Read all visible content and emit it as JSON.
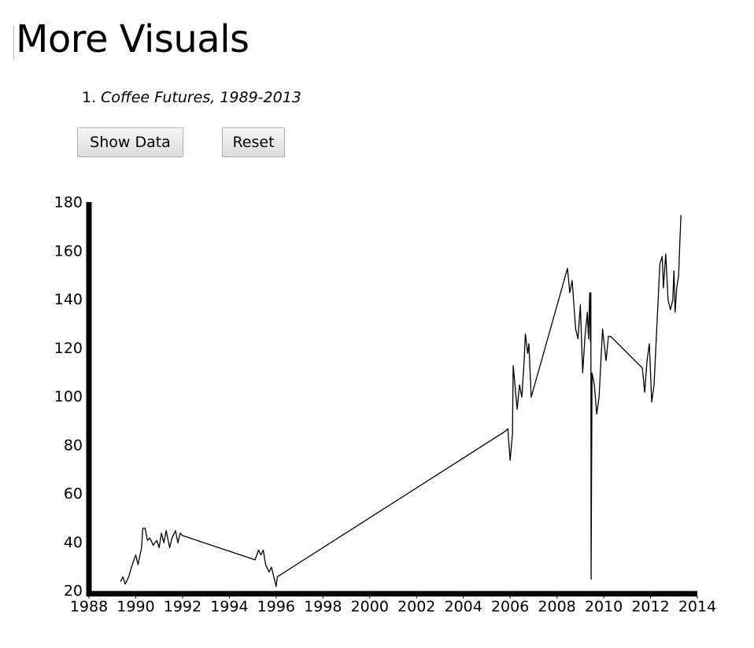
{
  "heading": "More Visuals",
  "list": [
    {
      "number": "1.",
      "text": "Coffee Futures, 1989-2013"
    }
  ],
  "buttons": [
    "Show Data",
    "Reset"
  ],
  "chart_data": {
    "type": "line",
    "x": [
      1989.35,
      1989.45,
      1989.55,
      1989.7,
      1989.85,
      1990.0,
      1990.1,
      1990.25,
      1990.3,
      1990.4,
      1990.5,
      1990.6,
      1990.75,
      1990.9,
      1991.0,
      1991.1,
      1991.2,
      1991.3,
      1991.45,
      1991.55,
      1991.7,
      1991.8,
      1991.9,
      1992.0,
      1995.1,
      1995.25,
      1995.35,
      1995.45,
      1995.55,
      1995.7,
      1995.8,
      1996.0,
      1996.05,
      2005.8,
      2005.9,
      2006.0,
      2006.1,
      2006.13,
      2006.3,
      2006.4,
      2006.5,
      2006.6,
      2006.65,
      2006.75,
      2006.8,
      2006.9,
      2008.45,
      2008.55,
      2008.65,
      2008.8,
      2008.9,
      2009.0,
      2009.1,
      2009.2,
      2009.3,
      2009.35,
      2009.4,
      2009.43,
      2009.45,
      2009.46,
      2009.5,
      2009.6,
      2009.7,
      2009.8,
      2009.95,
      2010.1,
      2010.2,
      2010.3,
      2011.65,
      2011.75,
      2011.85,
      2011.95,
      2012.05,
      2012.15,
      2012.3,
      2012.4,
      2012.5,
      2012.55,
      2012.65,
      2012.75,
      2012.85,
      2012.95,
      2013.0,
      2013.05,
      2013.12,
      2013.2,
      2013.25,
      2013.3
    ],
    "values": [
      24,
      26,
      23,
      26,
      31,
      35,
      31,
      38,
      46,
      46,
      41,
      42,
      39,
      41,
      38,
      44,
      40,
      45,
      38,
      42,
      45,
      40,
      44,
      43,
      33,
      37,
      35,
      37,
      31,
      28,
      30,
      22,
      26,
      86,
      87,
      74,
      85,
      113,
      95,
      105,
      100,
      115,
      126,
      118,
      122,
      100,
      153,
      143,
      148,
      128,
      124,
      138,
      110,
      125,
      135,
      124,
      143,
      123,
      143,
      25,
      110,
      105,
      93,
      100,
      128,
      115,
      125,
      125,
      112,
      102,
      115,
      122,
      98,
      105,
      135,
      155,
      158,
      145,
      159,
      140,
      136,
      140,
      152,
      135,
      145,
      150,
      163,
      175
    ],
    "color": "#000000",
    "xlim": [
      1988,
      2014
    ],
    "ylim": [
      20,
      180
    ],
    "xticks": [
      1988,
      1990,
      1992,
      1994,
      1996,
      1998,
      2000,
      2002,
      2004,
      2006,
      2008,
      2010,
      2012,
      2014
    ],
    "yticks": [
      20,
      40,
      60,
      80,
      100,
      120,
      140,
      160,
      180
    ],
    "grid": false
  }
}
